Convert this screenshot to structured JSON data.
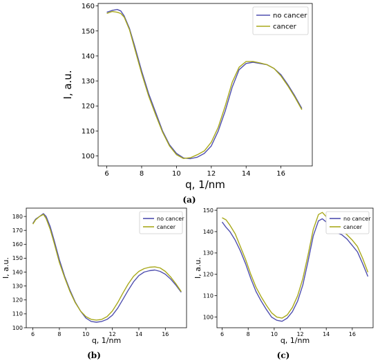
{
  "captions": [
    "(a)",
    "(b)",
    "(c)"
  ],
  "chart_data": [
    {
      "type": "line",
      "panel": "(a)",
      "xlabel": "q, 1/nm",
      "ylabel": "I, a.u.",
      "xlim": [
        5.5,
        17.8
      ],
      "ylim": [
        96,
        161
      ],
      "xticks": [
        6,
        8,
        10,
        12,
        14,
        16
      ],
      "yticks": [
        100,
        110,
        120,
        130,
        140,
        150,
        160
      ],
      "legend_position": "top-right",
      "grid": false,
      "series": [
        {
          "name": "no cancer",
          "color": "#4f4faf",
          "x": [
            6.0,
            6.3,
            6.6,
            6.8,
            7.0,
            7.3,
            7.6,
            8.0,
            8.4,
            8.8,
            9.2,
            9.6,
            10.0,
            10.4,
            10.8,
            11.2,
            11.6,
            12.0,
            12.4,
            12.8,
            13.2,
            13.6,
            14.0,
            14.4,
            14.8,
            15.2,
            15.6,
            16.0,
            16.4,
            16.8,
            17.2
          ],
          "y": [
            157.5,
            158.2,
            158.6,
            158.0,
            156.0,
            151.0,
            144.0,
            134.0,
            125.0,
            117.5,
            110.0,
            104.5,
            101.0,
            99.2,
            98.9,
            99.5,
            101.0,
            104.0,
            110.0,
            118.0,
            127.5,
            134.5,
            137.0,
            137.5,
            137.0,
            136.5,
            135.0,
            132.5,
            128.5,
            124.0,
            119.0
          ]
        },
        {
          "name": "cancer",
          "color": "#a8a81a",
          "x": [
            6.0,
            6.3,
            6.6,
            6.8,
            7.0,
            7.3,
            7.6,
            8.0,
            8.4,
            8.8,
            9.2,
            9.6,
            10.0,
            10.4,
            10.8,
            11.2,
            11.6,
            12.0,
            12.4,
            12.8,
            13.2,
            13.6,
            14.0,
            14.4,
            14.8,
            15.2,
            15.6,
            16.0,
            16.4,
            16.8,
            17.2
          ],
          "y": [
            157.0,
            157.8,
            157.5,
            157.0,
            155.5,
            150.5,
            143.0,
            133.0,
            124.0,
            116.5,
            109.5,
            104.0,
            100.5,
            99.0,
            99.3,
            100.5,
            102.0,
            105.5,
            111.5,
            120.0,
            129.5,
            135.5,
            137.8,
            137.8,
            137.2,
            136.5,
            135.0,
            132.0,
            128.0,
            123.5,
            118.5
          ]
        }
      ]
    },
    {
      "type": "line",
      "panel": "(b)",
      "xlabel": "q, 1/nm",
      "ylabel": "I, a.u.",
      "xlim": [
        5.5,
        17.6
      ],
      "ylim": [
        100,
        186
      ],
      "xticks": [
        6,
        8,
        10,
        12,
        14,
        16
      ],
      "yticks": [
        100,
        110,
        120,
        130,
        140,
        150,
        160,
        170,
        180
      ],
      "legend_position": "top-right",
      "grid": false,
      "series": [
        {
          "name": "no cancer",
          "color": "#4f4faf",
          "x": [
            6.0,
            6.2,
            6.5,
            6.8,
            7.0,
            7.3,
            7.6,
            8.0,
            8.4,
            8.8,
            9.2,
            9.6,
            10.0,
            10.4,
            10.8,
            11.2,
            11.6,
            12.0,
            12.4,
            12.8,
            13.2,
            13.6,
            14.0,
            14.4,
            14.8,
            15.2,
            15.6,
            16.0,
            16.4,
            16.8,
            17.2
          ],
          "y": [
            175.0,
            178.0,
            180.0,
            182.0,
            180.0,
            173.0,
            163.0,
            149.0,
            137.0,
            127.0,
            118.5,
            112.0,
            107.0,
            104.5,
            104.0,
            104.5,
            106.0,
            109.0,
            114.0,
            120.5,
            127.0,
            133.0,
            137.5,
            140.0,
            141.0,
            141.5,
            140.5,
            138.5,
            135.0,
            130.5,
            125.5
          ]
        },
        {
          "name": "cancer",
          "color": "#a8a81a",
          "x": [
            6.0,
            6.2,
            6.5,
            6.8,
            7.0,
            7.3,
            7.6,
            8.0,
            8.4,
            8.8,
            9.2,
            9.6,
            10.0,
            10.4,
            10.8,
            11.2,
            11.6,
            12.0,
            12.4,
            12.8,
            13.2,
            13.6,
            14.0,
            14.4,
            14.8,
            15.2,
            15.6,
            16.0,
            16.4,
            16.8,
            17.2
          ],
          "y": [
            174.5,
            177.5,
            180.0,
            181.5,
            178.5,
            171.0,
            161.0,
            147.0,
            136.0,
            126.0,
            118.0,
            112.0,
            108.0,
            106.0,
            105.5,
            106.0,
            108.0,
            112.0,
            118.0,
            125.0,
            131.5,
            137.0,
            140.5,
            142.5,
            143.5,
            143.8,
            143.0,
            140.5,
            136.5,
            131.5,
            126.0
          ]
        }
      ]
    },
    {
      "type": "line",
      "panel": "(c)",
      "xlabel": "q, 1/nm",
      "ylabel": "I, a.u.",
      "xlim": [
        5.6,
        17.6
      ],
      "ylim": [
        95,
        151
      ],
      "xticks": [
        6,
        8,
        10,
        12,
        14,
        16
      ],
      "yticks": [
        100,
        110,
        120,
        130,
        140,
        150
      ],
      "legend_position": "top-right",
      "grid": false,
      "series": [
        {
          "name": "no cancer",
          "color": "#4f4faf",
          "x": [
            6.0,
            6.3,
            6.6,
            7.0,
            7.4,
            7.8,
            8.2,
            8.6,
            9.0,
            9.4,
            9.8,
            10.2,
            10.6,
            11.0,
            11.4,
            11.8,
            12.2,
            12.6,
            13.0,
            13.4,
            13.7,
            14.0,
            14.4,
            14.8,
            15.2,
            15.6,
            16.0,
            16.4,
            16.8,
            17.2
          ],
          "y": [
            144.5,
            142.0,
            140.0,
            136.0,
            131.0,
            125.0,
            118.0,
            112.0,
            107.5,
            103.5,
            100.0,
            98.5,
            98.0,
            99.5,
            102.5,
            107.5,
            115.0,
            126.0,
            138.0,
            145.0,
            146.0,
            144.5,
            142.0,
            139.5,
            138.5,
            136.5,
            133.5,
            130.5,
            125.0,
            119.0
          ]
        },
        {
          "name": "cancer",
          "color": "#a8a81a",
          "x": [
            6.0,
            6.3,
            6.6,
            7.0,
            7.4,
            7.8,
            8.2,
            8.6,
            9.0,
            9.4,
            9.8,
            10.2,
            10.6,
            11.0,
            11.4,
            11.8,
            12.2,
            12.6,
            13.0,
            13.4,
            13.7,
            14.0,
            14.4,
            14.8,
            15.2,
            15.6,
            16.0,
            16.4,
            16.8,
            17.2
          ],
          "y": [
            146.5,
            145.5,
            143.0,
            139.0,
            133.0,
            127.0,
            120.0,
            114.0,
            109.5,
            105.5,
            102.0,
            100.0,
            99.5,
            101.0,
            104.5,
            110.0,
            118.0,
            129.0,
            141.0,
            148.0,
            149.0,
            147.0,
            144.5,
            142.0,
            140.5,
            138.5,
            136.0,
            133.0,
            127.5,
            121.0
          ]
        }
      ]
    }
  ]
}
